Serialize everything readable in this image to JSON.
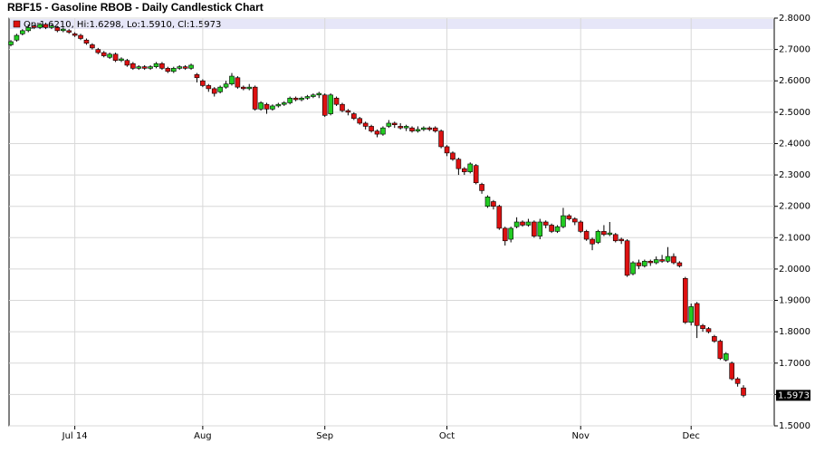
{
  "chart_data": {
    "type": "candlestick",
    "title": "RBF15 - Gasoline RBOB - Daily Candlestick Chart",
    "legend": "Op:1.6210, Hi:1.6298, Lo:1.5910, Cl:1.5973",
    "up_color": "#22cc22",
    "down_color": "#dd1111",
    "last_price": {
      "value": 1.5973,
      "label": "1.5973"
    },
    "ylim": [
      1.5,
      2.8
    ],
    "yticks": [
      {
        "value": 1.5,
        "label": "1.5000"
      },
      {
        "value": 1.6,
        "label": "1.6000"
      },
      {
        "value": 1.7,
        "label": "1.7000"
      },
      {
        "value": 1.8,
        "label": "1.8000"
      },
      {
        "value": 1.9,
        "label": "1.9000"
      },
      {
        "value": 2.0,
        "label": "2.0000"
      },
      {
        "value": 2.1,
        "label": "2.1000"
      },
      {
        "value": 2.2,
        "label": "2.2000"
      },
      {
        "value": 2.3,
        "label": "2.3000"
      },
      {
        "value": 2.4,
        "label": "2.4000"
      },
      {
        "value": 2.5,
        "label": "2.5000"
      },
      {
        "value": 2.6,
        "label": "2.6000"
      },
      {
        "value": 2.7,
        "label": "2.7000"
      },
      {
        "value": 2.8,
        "label": "2.8000"
      }
    ],
    "grid": true,
    "categories": [
      null,
      null,
      null,
      null,
      null,
      null,
      null,
      null,
      null,
      null,
      null,
      "Jul 14",
      null,
      null,
      null,
      null,
      null,
      null,
      null,
      null,
      null,
      null,
      null,
      null,
      null,
      null,
      null,
      null,
      null,
      null,
      null,
      null,
      null,
      "Aug",
      null,
      null,
      null,
      null,
      null,
      null,
      null,
      null,
      null,
      null,
      null,
      null,
      null,
      null,
      null,
      null,
      null,
      null,
      null,
      null,
      "Sep",
      null,
      null,
      null,
      null,
      null,
      null,
      null,
      null,
      null,
      null,
      null,
      null,
      null,
      null,
      null,
      null,
      null,
      null,
      null,
      null,
      "Oct",
      null,
      null,
      null,
      null,
      null,
      null,
      null,
      null,
      null,
      null,
      null,
      null,
      null,
      null,
      null,
      null,
      null,
      null,
      null,
      null,
      null,
      null,
      "Nov",
      null,
      null,
      null,
      null,
      null,
      null,
      null,
      null,
      null,
      null,
      null,
      null,
      null,
      null,
      null,
      null,
      null,
      null,
      "Dec",
      null,
      null,
      null,
      null,
      null,
      null,
      null,
      null,
      null
    ],
    "open": [
      2.715,
      2.73,
      2.75,
      2.76,
      2.775,
      2.77,
      2.78,
      2.77,
      2.77,
      2.76,
      2.76,
      2.75,
      2.745,
      2.73,
      2.715,
      2.7,
      2.69,
      2.675,
      2.685,
      2.665,
      2.665,
      2.655,
      2.64,
      2.645,
      2.64,
      2.645,
      2.655,
      2.64,
      2.63,
      2.64,
      2.645,
      2.64,
      2.62,
      2.6,
      2.585,
      2.575,
      2.565,
      2.58,
      2.59,
      2.61,
      2.58,
      2.575,
      2.58,
      2.51,
      2.525,
      2.51,
      2.52,
      2.525,
      2.53,
      2.545,
      2.54,
      2.545,
      2.55,
      2.555,
      2.555,
      2.495,
      2.545,
      2.525,
      2.505,
      2.495,
      2.48,
      2.465,
      2.455,
      2.44,
      2.43,
      2.455,
      2.465,
      2.455,
      2.45,
      2.45,
      2.44,
      2.445,
      2.45,
      2.45,
      2.44,
      2.39,
      2.37,
      2.35,
      2.32,
      2.31,
      2.33,
      2.27,
      2.2,
      2.215,
      2.2,
      2.13,
      2.095,
      2.135,
      2.15,
      2.14,
      2.15,
      2.105,
      2.15,
      2.14,
      2.12,
      2.135,
      2.17,
      2.16,
      2.15,
      2.12,
      2.095,
      2.085,
      2.12,
      2.11,
      2.11,
      2.095,
      2.09,
      1.985,
      2.02,
      2.01,
      2.025,
      2.02,
      2.03,
      2.025,
      2.04,
      2.02,
      1.97,
      1.83,
      1.89,
      1.82,
      1.81,
      1.785,
      1.77,
      1.71,
      1.7,
      1.65,
      1.621
    ],
    "high": [
      2.73,
      2.75,
      2.765,
      2.78,
      2.78,
      2.785,
      2.785,
      2.78,
      2.775,
      2.77,
      2.765,
      2.755,
      2.75,
      2.735,
      2.72,
      2.705,
      2.695,
      2.69,
      2.69,
      2.675,
      2.67,
      2.66,
      2.65,
      2.65,
      2.65,
      2.66,
      2.66,
      2.645,
      2.645,
      2.65,
      2.65,
      2.655,
      2.625,
      2.605,
      2.59,
      2.58,
      2.585,
      2.6,
      2.625,
      2.615,
      2.585,
      2.59,
      2.585,
      2.535,
      2.53,
      2.525,
      2.53,
      2.535,
      2.55,
      2.55,
      2.55,
      2.555,
      2.56,
      2.565,
      2.56,
      2.56,
      2.55,
      2.53,
      2.51,
      2.5,
      2.485,
      2.47,
      2.46,
      2.445,
      2.455,
      2.475,
      2.47,
      2.465,
      2.46,
      2.455,
      2.455,
      2.455,
      2.455,
      2.455,
      2.445,
      2.395,
      2.375,
      2.355,
      2.325,
      2.34,
      2.335,
      2.275,
      2.235,
      2.22,
      2.205,
      2.135,
      2.135,
      2.165,
      2.155,
      2.16,
      2.155,
      2.16,
      2.155,
      2.145,
      2.14,
      2.195,
      2.175,
      2.165,
      2.155,
      2.125,
      2.1,
      2.125,
      2.14,
      2.15,
      2.115,
      2.1,
      2.095,
      2.025,
      2.03,
      2.03,
      2.03,
      2.04,
      2.045,
      2.07,
      2.05,
      2.025,
      1.975,
      1.89,
      1.895,
      1.825,
      1.815,
      1.79,
      1.775,
      1.735,
      1.705,
      1.655,
      1.6298
    ],
    "low": [
      2.71,
      2.725,
      2.745,
      2.755,
      2.765,
      2.765,
      2.765,
      2.765,
      2.755,
      2.755,
      2.75,
      2.74,
      2.73,
      2.715,
      2.7,
      2.685,
      2.675,
      2.67,
      2.66,
      2.66,
      2.645,
      2.635,
      2.635,
      2.635,
      2.635,
      2.64,
      2.635,
      2.625,
      2.625,
      2.635,
      2.635,
      2.635,
      2.595,
      2.58,
      2.565,
      2.55,
      2.56,
      2.575,
      2.585,
      2.575,
      2.57,
      2.57,
      2.505,
      2.505,
      2.495,
      2.505,
      2.515,
      2.52,
      2.525,
      2.535,
      2.535,
      2.54,
      2.545,
      2.545,
      2.485,
      2.49,
      2.52,
      2.5,
      2.49,
      2.475,
      2.46,
      2.445,
      2.435,
      2.42,
      2.425,
      2.45,
      2.45,
      2.445,
      2.44,
      2.435,
      2.435,
      2.44,
      2.44,
      2.435,
      2.385,
      2.36,
      2.345,
      2.3,
      2.3,
      2.305,
      2.27,
      2.24,
      2.195,
      2.19,
      2.125,
      2.075,
      2.085,
      2.13,
      2.135,
      2.135,
      2.1,
      2.095,
      2.13,
      2.115,
      2.115,
      2.13,
      2.155,
      2.14,
      2.115,
      2.09,
      2.06,
      2.08,
      2.105,
      2.105,
      2.085,
      2.08,
      1.975,
      1.98,
      2.0,
      2.005,
      2.01,
      2.015,
      2.02,
      2.02,
      2.015,
      2.005,
      1.825,
      1.82,
      1.78,
      1.8,
      1.795,
      1.765,
      1.71,
      1.705,
      1.645,
      1.625,
      1.591
    ],
    "close": [
      2.725,
      2.745,
      2.76,
      2.77,
      2.77,
      2.78,
      2.77,
      2.775,
      2.76,
      2.765,
      2.755,
      2.745,
      2.735,
      2.72,
      2.705,
      2.69,
      2.68,
      2.685,
      2.665,
      2.67,
      2.65,
      2.64,
      2.645,
      2.64,
      2.645,
      2.655,
      2.64,
      2.63,
      2.64,
      2.645,
      2.64,
      2.65,
      2.61,
      2.585,
      2.575,
      2.56,
      2.58,
      2.59,
      2.615,
      2.58,
      2.575,
      2.58,
      2.51,
      2.53,
      2.51,
      2.52,
      2.525,
      2.53,
      2.545,
      2.54,
      2.545,
      2.55,
      2.555,
      2.56,
      2.49,
      2.555,
      2.525,
      2.505,
      2.5,
      2.48,
      2.465,
      2.455,
      2.44,
      2.43,
      2.45,
      2.465,
      2.46,
      2.45,
      2.455,
      2.44,
      2.445,
      2.45,
      2.445,
      2.44,
      2.39,
      2.37,
      2.35,
      2.32,
      2.31,
      2.335,
      2.275,
      2.25,
      2.23,
      2.2,
      2.13,
      2.09,
      2.13,
      2.15,
      2.14,
      2.15,
      2.105,
      2.15,
      2.14,
      2.12,
      2.135,
      2.17,
      2.16,
      2.15,
      2.12,
      2.095,
      2.08,
      2.12,
      2.11,
      2.115,
      2.09,
      2.09,
      1.98,
      2.02,
      2.01,
      2.025,
      2.02,
      2.03,
      2.025,
      2.04,
      2.02,
      2.01,
      1.83,
      1.88,
      1.82,
      1.81,
      1.8,
      1.77,
      1.715,
      1.73,
      1.65,
      1.635,
      1.5973
    ]
  }
}
